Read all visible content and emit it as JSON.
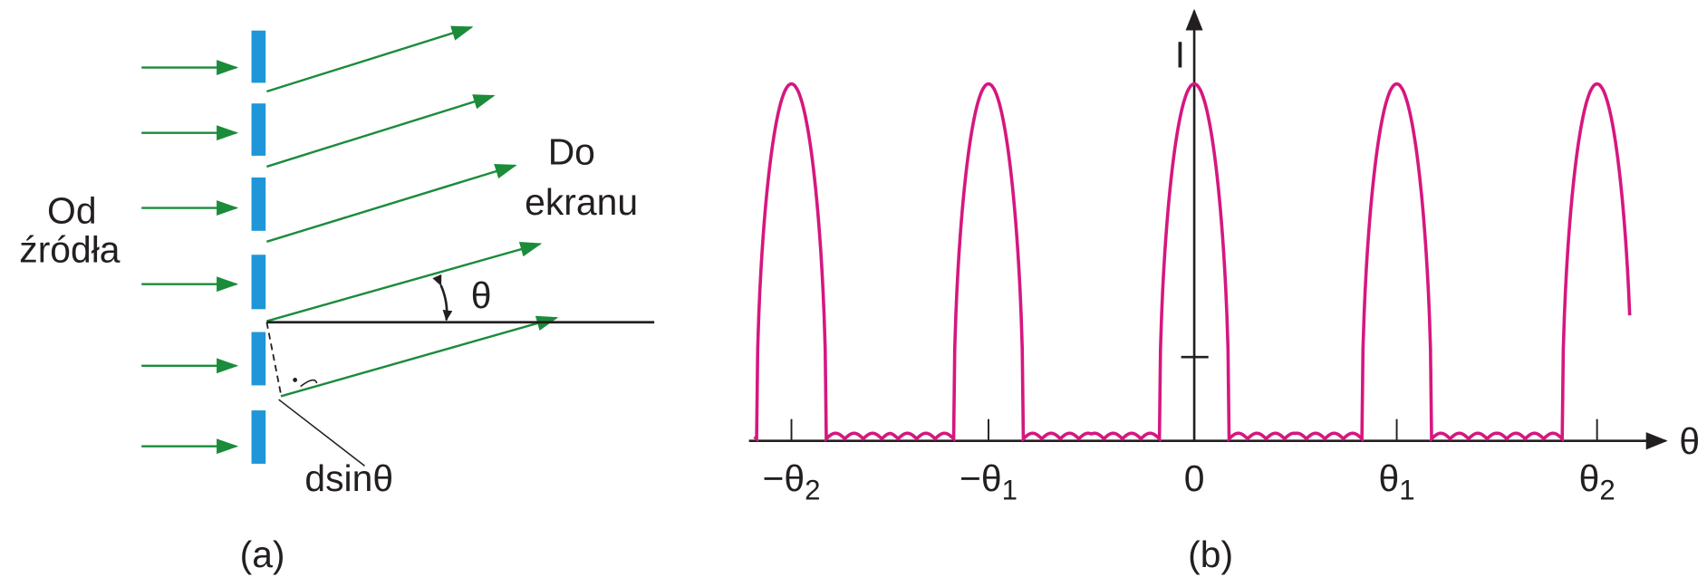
{
  "panel_a": {
    "source_label": [
      "Od",
      "źródła"
    ],
    "screen_label": [
      "Do",
      "ekranu"
    ],
    "angle": "θ",
    "path_difference": "dsinθ",
    "caption": "(a)"
  },
  "panel_b": {
    "y_axis_label": "I",
    "x_axis_label": "θ",
    "x_tick_labels": [
      {
        "main": "−θ",
        "sub": "2"
      },
      {
        "main": "−θ",
        "sub": "1"
      },
      {
        "main": "0",
        "sub": ""
      },
      {
        "main": "θ",
        "sub": "1"
      },
      {
        "main": "θ",
        "sub": "2"
      }
    ],
    "caption": "(b)"
  }
}
